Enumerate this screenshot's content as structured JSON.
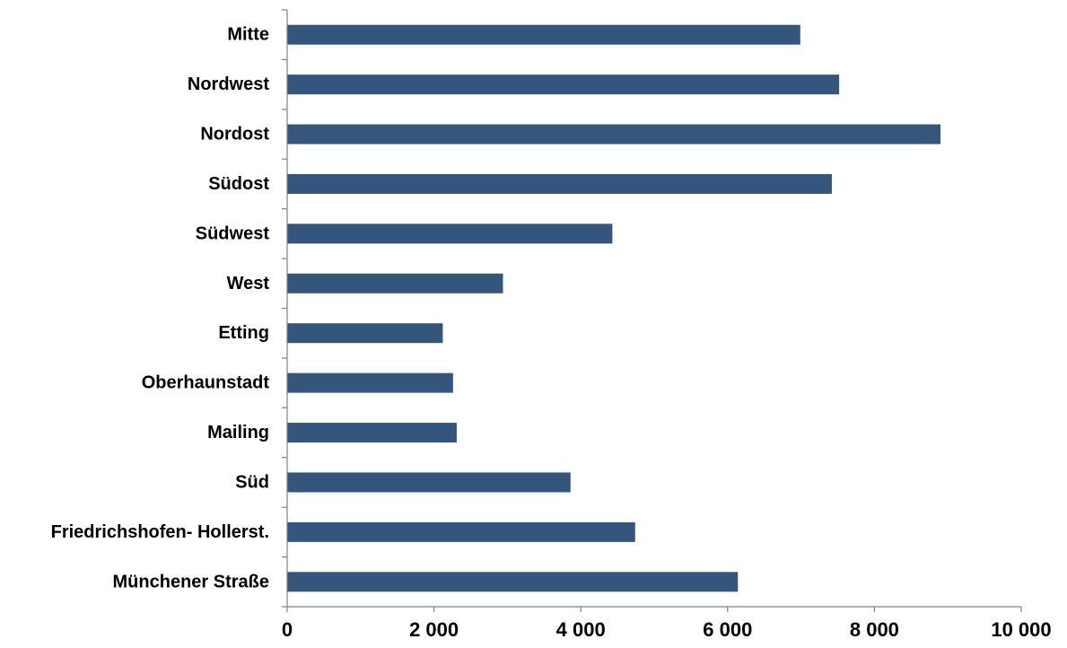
{
  "chart_data": {
    "type": "bar",
    "orientation": "horizontal",
    "title": "",
    "xlabel": "",
    "ylabel": "",
    "categories": [
      "Mitte",
      "Nordwest",
      "Nordost",
      "Südost",
      "Südwest",
      "West",
      "Etting",
      "Oberhaunstadt",
      "Mailing",
      "Süd",
      "Friedrichshofen- Hollerst.",
      "Münchener Straße"
    ],
    "values": [
      6990,
      7520,
      8900,
      7420,
      4430,
      2940,
      2120,
      2260,
      2310,
      3860,
      4740,
      6140
    ],
    "xlim": [
      0,
      10000
    ],
    "xticks": [
      0,
      2000,
      4000,
      6000,
      8000,
      10000
    ],
    "xtick_labels": [
      "0",
      "2 000",
      "4 000",
      "6 000",
      "8 000",
      "10 000"
    ],
    "grid": false,
    "legend": "none",
    "bar_color": "#34567C"
  }
}
